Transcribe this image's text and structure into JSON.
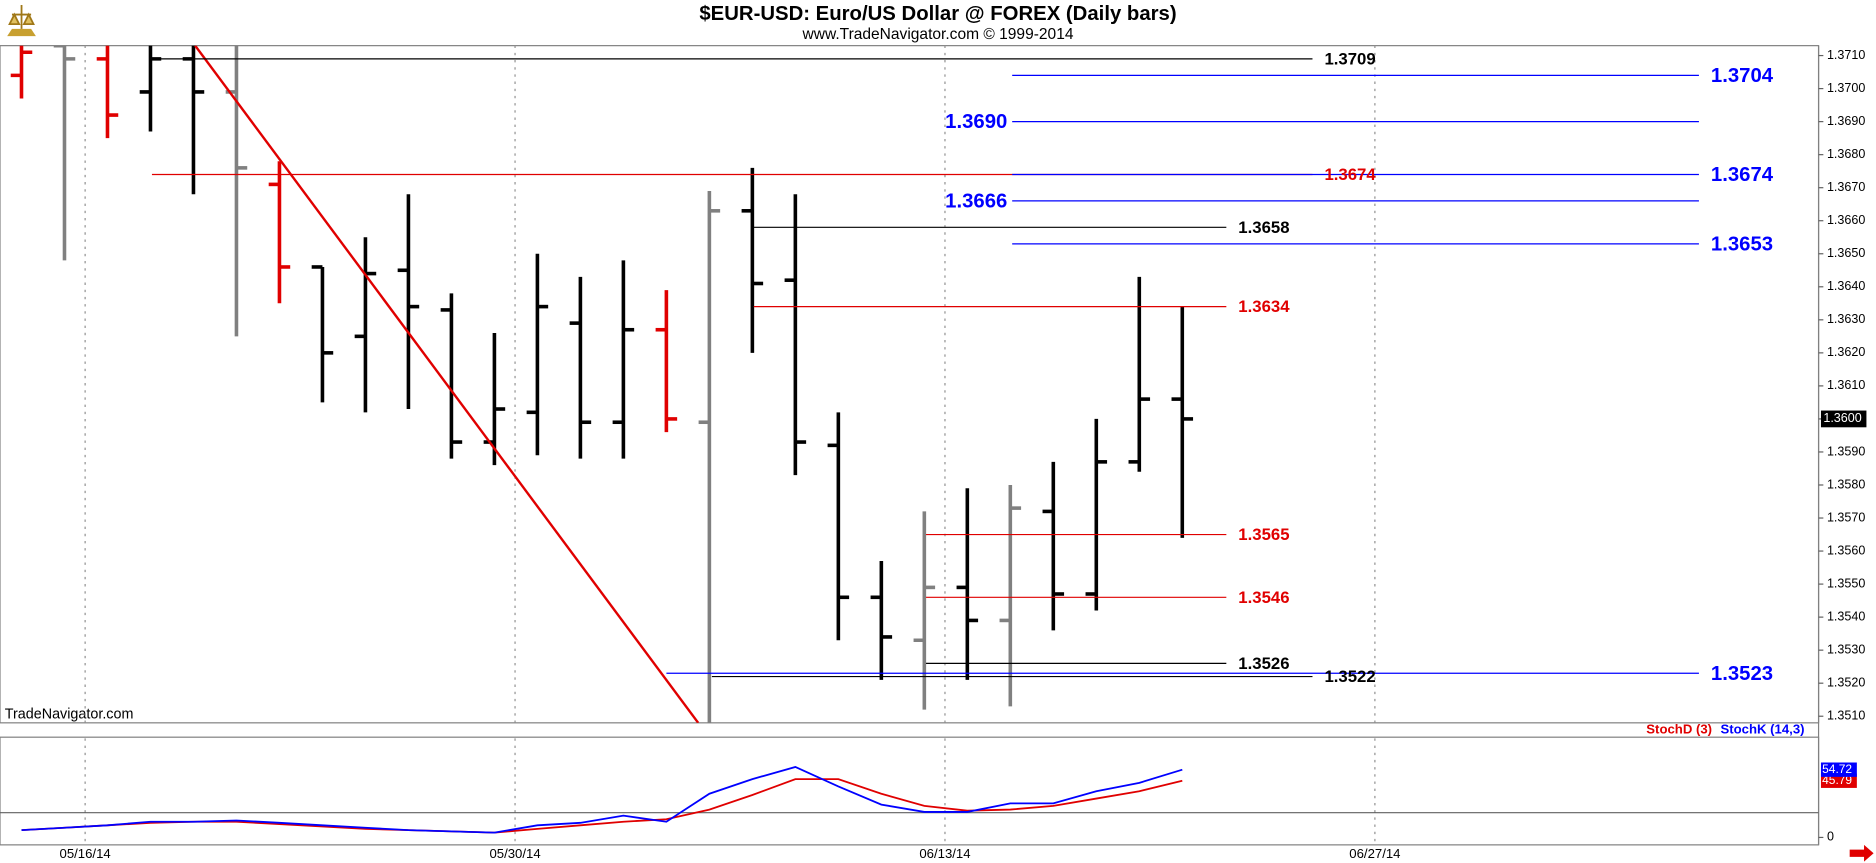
{
  "chart_data": [
    {
      "type": "ohlc",
      "title": "$EUR-USD:  Euro/US Dollar @ FOREX  (Daily bars)",
      "subtitle": "www.TradeNavigator.com © 1999-2014",
      "watermark": "TradeNavigator.com",
      "x": [
        0,
        1,
        2,
        3,
        4,
        5,
        6,
        7,
        8,
        9,
        10,
        11,
        12,
        13,
        14,
        15,
        16,
        17,
        18,
        19,
        20,
        21,
        22,
        23,
        24,
        25,
        26,
        27
      ],
      "open": [
        1.3704,
        1.3713,
        1.3709,
        1.3699,
        1.3709,
        1.3699,
        1.3671,
        1.3646,
        1.3625,
        1.3645,
        1.3633,
        1.3593,
        1.3602,
        1.3629,
        1.3599,
        1.3627,
        1.3599,
        1.3663,
        1.3642,
        1.3592,
        1.3546,
        1.3533,
        1.3549,
        1.3539,
        1.3572,
        1.3547,
        1.3587,
        1.3606
      ],
      "high": [
        1.3713,
        1.3713,
        1.3713,
        1.3713,
        1.3713,
        1.3713,
        1.3678,
        1.3646,
        1.3655,
        1.3668,
        1.3638,
        1.3626,
        1.365,
        1.3643,
        1.3648,
        1.3639,
        1.3669,
        1.3676,
        1.3668,
        1.3602,
        1.3557,
        1.3572,
        1.3579,
        1.358,
        1.3587,
        1.36,
        1.3643,
        1.3634
      ],
      "low": [
        1.3697,
        1.3648,
        1.3685,
        1.3687,
        1.3668,
        1.3625,
        1.3635,
        1.3605,
        1.3602,
        1.3603,
        1.3588,
        1.3586,
        1.3589,
        1.3588,
        1.3588,
        1.3596,
        1.3508,
        1.362,
        1.3583,
        1.3533,
        1.3521,
        1.3512,
        1.3521,
        1.3513,
        1.3536,
        1.3542,
        1.3584,
        1.3564
      ],
      "close": [
        1.3711,
        1.3709,
        1.3692,
        1.3709,
        1.3699,
        1.3676,
        1.3646,
        1.362,
        1.3644,
        1.3634,
        1.3593,
        1.3603,
        1.3634,
        1.3599,
        1.3627,
        1.36,
        1.3663,
        1.3641,
        1.3593,
        1.3546,
        1.3534,
        1.3549,
        1.3539,
        1.3573,
        1.3547,
        1.3587,
        1.3606,
        1.36
      ],
      "colors": [
        "#e00000",
        "#808080",
        "#e00000",
        "#000000",
        "#000000",
        "#808080",
        "#e00000",
        "#000000",
        "#000000",
        "#000000",
        "#000000",
        "#000000",
        "#000000",
        "#000000",
        "#000000",
        "#e00000",
        "#808080",
        "#000000",
        "#000000",
        "#000000",
        "#000000",
        "#808080",
        "#000000",
        "#808080",
        "#000000",
        "#000000",
        "#000000",
        "#000000"
      ],
      "xlim": [
        -0.5,
        41.8
      ],
      "xticks": [
        {
          "value": 1.48,
          "label": "05/16/14"
        },
        {
          "value": 11.48,
          "label": "05/30/14"
        },
        {
          "value": 21.48,
          "label": "06/13/14"
        },
        {
          "value": 31.48,
          "label": "06/27/14"
        }
      ],
      "ylim": [
        1.3508,
        1.3713
      ],
      "yticks": [
        {
          "value": 1.351,
          "label": "1.3510"
        },
        {
          "value": 1.352,
          "label": "1.3520"
        },
        {
          "value": 1.353,
          "label": "1.3530"
        },
        {
          "value": 1.354,
          "label": "1.3540"
        },
        {
          "value": 1.355,
          "label": "1.3550"
        },
        {
          "value": 1.356,
          "label": "1.3560"
        },
        {
          "value": 1.357,
          "label": "1.3570"
        },
        {
          "value": 1.358,
          "label": "1.3580"
        },
        {
          "value": 1.359,
          "label": "1.3590"
        },
        {
          "value": 1.36,
          "label": "1.3600"
        },
        {
          "value": 1.361,
          "label": "1.3610"
        },
        {
          "value": 1.362,
          "label": "1.3620"
        },
        {
          "value": 1.363,
          "label": "1.3630"
        },
        {
          "value": 1.364,
          "label": "1.3640"
        },
        {
          "value": 1.365,
          "label": "1.3650"
        },
        {
          "value": 1.366,
          "label": "1.3660"
        },
        {
          "value": 1.367,
          "label": "1.3670"
        },
        {
          "value": 1.368,
          "label": "1.3680"
        },
        {
          "value": 1.369,
          "label": "1.3690"
        },
        {
          "value": 1.37,
          "label": "1.3700"
        },
        {
          "value": 1.371,
          "label": "1.3710"
        }
      ],
      "levels": [
        {
          "value": 1.3709,
          "label": "1.3709",
          "color": "#000000"
        },
        {
          "value": 1.3704,
          "label": "1.3704",
          "color": "#0000ff"
        },
        {
          "value": 1.369,
          "label": "1.3690",
          "color": "#0000ff"
        },
        {
          "value": 1.3674,
          "label": "1.3674",
          "color": "#e00000"
        },
        {
          "value": 1.3674,
          "label": "1.3674",
          "color": "#0000ff"
        },
        {
          "value": 1.3666,
          "label": "1.3666",
          "color": "#0000ff"
        },
        {
          "value": 1.3658,
          "label": "1.3658",
          "color": "#000000"
        },
        {
          "value": 1.3653,
          "label": "1.3653",
          "color": "#0000ff"
        },
        {
          "value": 1.3634,
          "label": "1.3634",
          "color": "#e00000"
        },
        {
          "value": 1.3565,
          "label": "1.3565",
          "color": "#e00000"
        },
        {
          "value": 1.3546,
          "label": "1.3546",
          "color": "#e00000"
        },
        {
          "value": 1.3526,
          "label": "1.3526",
          "color": "#000000"
        },
        {
          "value": 1.3522,
          "label": "1.3522",
          "color": "#000000"
        },
        {
          "value": 1.3523,
          "label": "1.3523",
          "color": "#0000ff"
        }
      ],
      "trendline": {
        "x": [
          4.04,
          15.74
        ],
        "y": [
          1.3713,
          1.3508
        ],
        "color": "#e00000"
      },
      "last_price": {
        "value": 1.36,
        "label": "1.3600"
      }
    },
    {
      "type": "line",
      "x": [
        0,
        1,
        2,
        3,
        4,
        5,
        6,
        7,
        8,
        9,
        10,
        11,
        12,
        13,
        14,
        15,
        16,
        17,
        18,
        19,
        20,
        21,
        22,
        23,
        24,
        25,
        26,
        27
      ],
      "series": [
        {
          "name": "StochD (3)",
          "color": "#e00000",
          "values": [
            5.9,
            7.8,
            9.8,
            11.8,
            12.7,
            12.7,
            10.8,
            8.8,
            6.9,
            5.9,
            4.9,
            3.9,
            6.9,
            9.8,
            12.7,
            14.7,
            22.5,
            34.3,
            47.1,
            47.1,
            35.3,
            25.5,
            21.6,
            22.5,
            25.5,
            31.4,
            37.3,
            45.79
          ]
        },
        {
          "name": "StochK (14,3)",
          "color": "#0000ff",
          "values": [
            5.9,
            7.8,
            9.8,
            12.7,
            12.7,
            13.7,
            11.8,
            9.8,
            7.8,
            5.9,
            4.9,
            3.9,
            9.8,
            11.8,
            17.6,
            12.7,
            35.3,
            47.1,
            56.9,
            41.2,
            26.5,
            20.6,
            20.6,
            27.5,
            27.5,
            37.3,
            44.1,
            54.72
          ]
        }
      ],
      "xlim": [
        -0.5,
        41.8
      ],
      "ylim": [
        -6,
        80
      ],
      "yticks": [
        0
      ],
      "reference_lines": [
        20
      ]
    }
  ]
}
